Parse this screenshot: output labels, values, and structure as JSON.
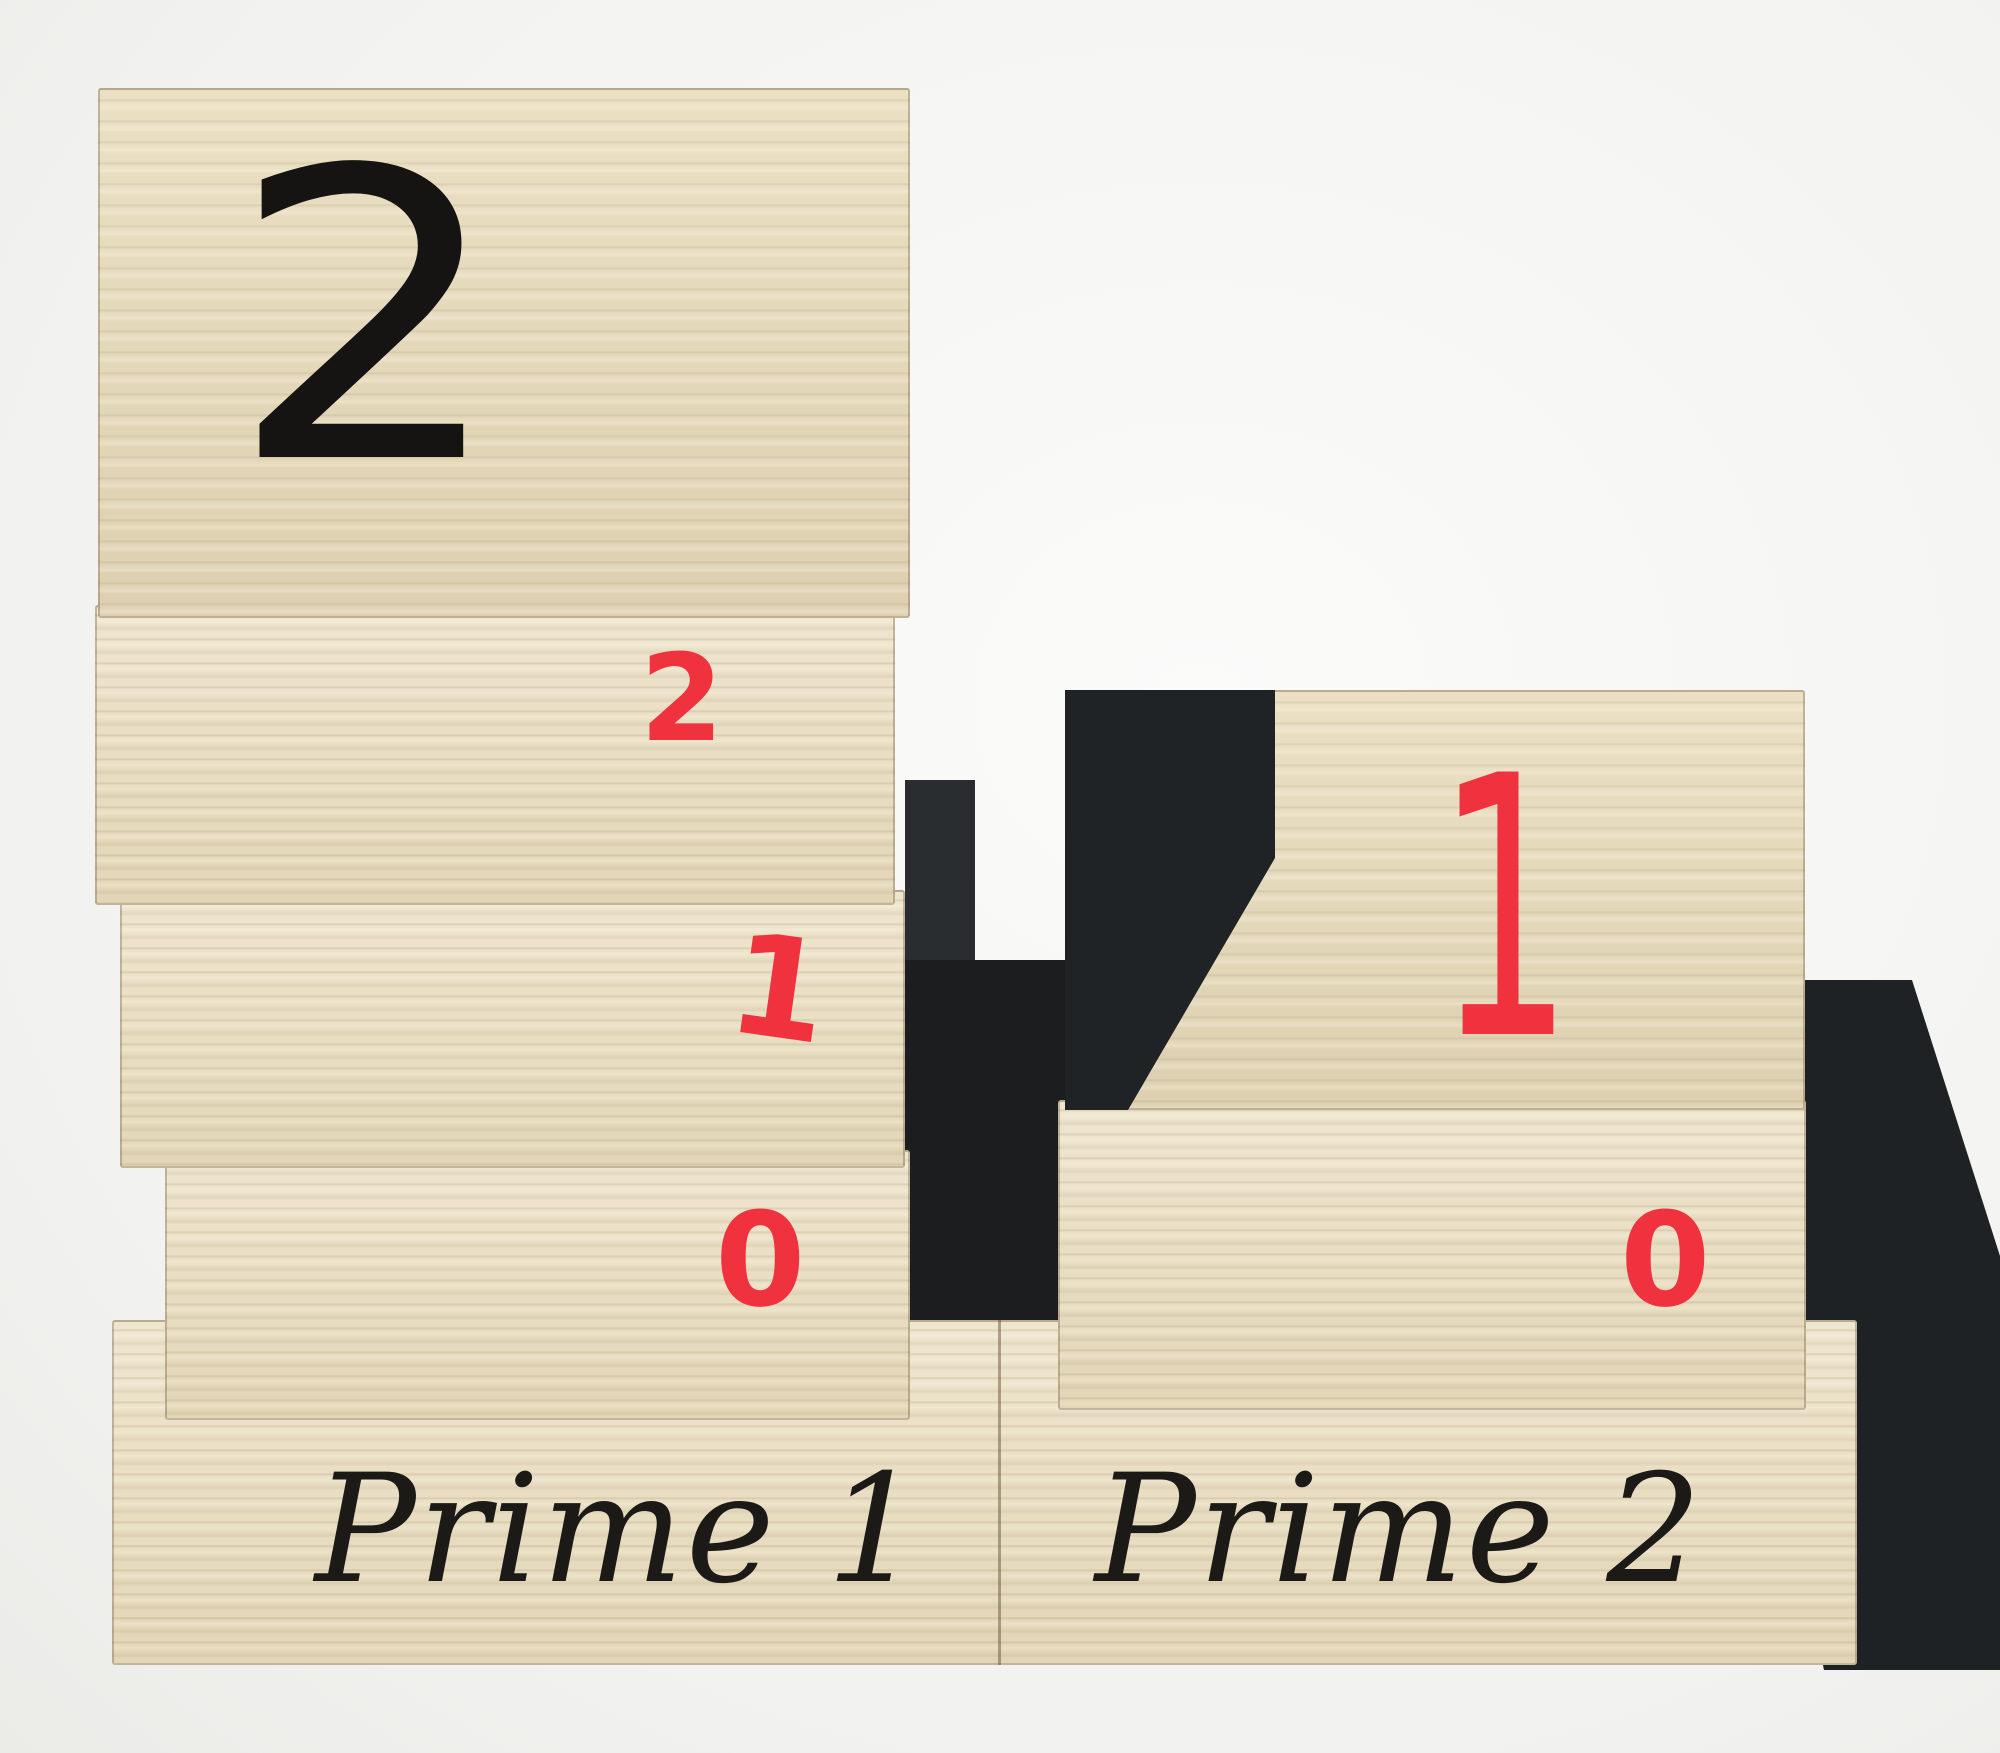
{
  "left_stack": {
    "top_face_number": "2",
    "side_numbers": [
      "2",
      "1",
      "0"
    ]
  },
  "right_stack": {
    "top_face_number": "1",
    "side_number": "0"
  },
  "base": {
    "left_label": "Prime 1",
    "right_label": "Prime 2"
  },
  "colors": {
    "red_marker": "#f0323e",
    "black_marker": "#151412",
    "wood": "#e7dcc0"
  }
}
